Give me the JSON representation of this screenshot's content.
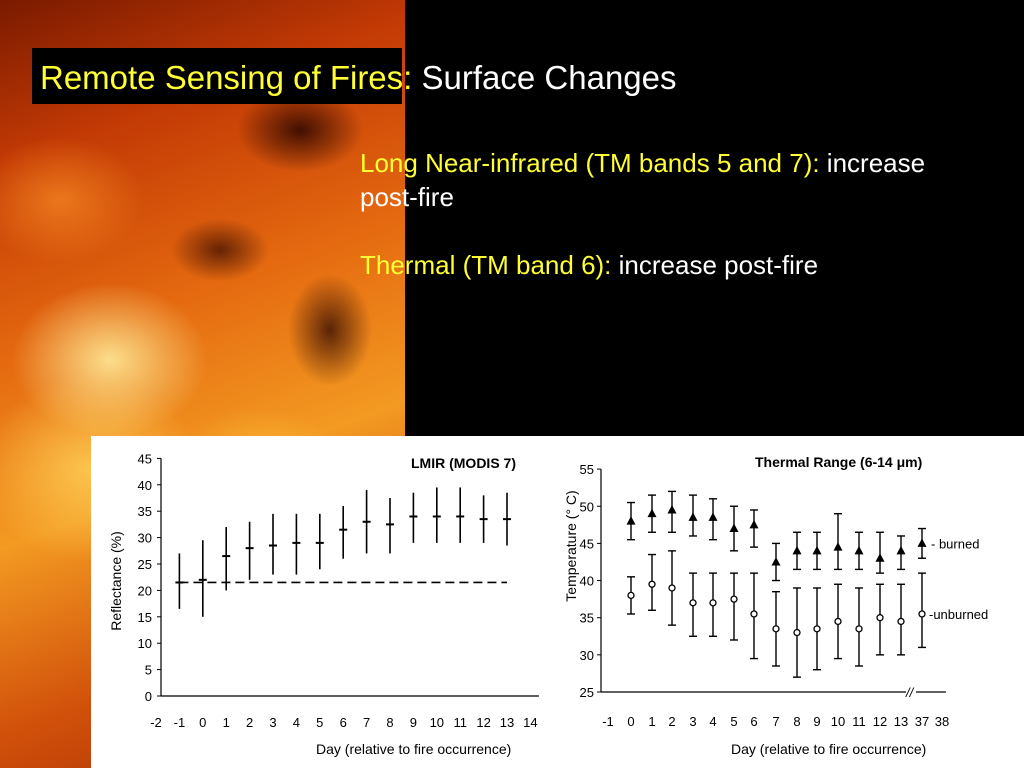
{
  "slide": {
    "title_highlight": "Remote Sensing of Fires:",
    "title_rest": " Surface Changes",
    "bullets": [
      {
        "highlight": "Long Near-infrared (TM bands 5 and 7):",
        "rest": " increase post-fire"
      },
      {
        "highlight": "Thermal (TM band 6):",
        "rest": " increase post-fire"
      }
    ]
  },
  "colors": {
    "highlight": "#ffff33",
    "text": "#ffffff",
    "background": "#000000"
  },
  "chart_data": [
    {
      "type": "scatter",
      "title": "LMIR (MODIS 7)",
      "xlabel": "Day (relative to fire occurrence)",
      "ylabel": "Reflectance (%)",
      "xlim": [
        -2,
        14
      ],
      "ylim": [
        0,
        45
      ],
      "x_ticks": [
        "-2",
        "-1",
        "0",
        "1",
        "2",
        "3",
        "4",
        "5",
        "6",
        "7",
        "8",
        "9",
        "10",
        "11",
        "12",
        "13",
        "14"
      ],
      "y_ticks": [
        "0",
        "5",
        "10",
        "15",
        "20",
        "25",
        "30",
        "35",
        "40",
        "45"
      ],
      "series": [
        {
          "x": [
            -1,
            0,
            1,
            2,
            3,
            4,
            5,
            6,
            7,
            8,
            9,
            10,
            11,
            12,
            13
          ],
          "mean": [
            21.5,
            22,
            26.5,
            28,
            28.5,
            29,
            29,
            31.5,
            33,
            32.5,
            34,
            34,
            34,
            33.5,
            33.5
          ],
          "low": [
            16.5,
            15,
            20,
            22,
            23,
            23,
            24,
            26,
            27,
            27,
            29,
            29,
            29,
            29,
            28.5
          ],
          "high": [
            27,
            29.5,
            32,
            33,
            34.5,
            34.5,
            34.5,
            36,
            39,
            37.5,
            38.5,
            39.5,
            39.5,
            38,
            38.5
          ]
        },
        {
          "x": [
            -1,
            13
          ],
          "mean": [
            21.5,
            21.5
          ],
          "style": "dashed"
        }
      ]
    },
    {
      "type": "scatter",
      "title": "Thermal Range (6-14 μm)",
      "xlabel": "Day (relative to fire occurrence)",
      "ylabel": "Temperature (° C)",
      "ylim": [
        25,
        55
      ],
      "x_ticks": [
        "-1",
        "0",
        "1",
        "2",
        "3",
        "4",
        "5",
        "6",
        "7",
        "8",
        "9",
        "10",
        "11",
        "12",
        "13",
        "37",
        "38"
      ],
      "y_ticks": [
        "25",
        "30",
        "35",
        "40",
        "45",
        "50",
        "55"
      ],
      "series": [
        {
          "name": "- burned",
          "x": [
            "0",
            "1",
            "2",
            "3",
            "4",
            "5",
            "6",
            "7",
            "8",
            "9",
            "10",
            "11",
            "12",
            "13",
            "37"
          ],
          "mean": [
            48,
            49,
            49.5,
            48.5,
            48.5,
            47,
            47.5,
            42.5,
            44,
            44,
            44.5,
            44,
            43,
            44,
            45
          ],
          "low": [
            45.5,
            46.5,
            46.5,
            46,
            45.5,
            44,
            44.5,
            40,
            41.5,
            41.5,
            41.5,
            41.5,
            41,
            41.5,
            43
          ],
          "high": [
            50.5,
            51.5,
            52,
            51.5,
            51,
            50,
            49.5,
            45,
            46.5,
            46.5,
            49,
            46.5,
            46.5,
            46,
            47
          ]
        },
        {
          "name": "-unburned",
          "x": [
            "0",
            "1",
            "2",
            "3",
            "4",
            "5",
            "6",
            "7",
            "8",
            "9",
            "10",
            "11",
            "12",
            "13",
            "37"
          ],
          "mean": [
            38,
            39.5,
            39,
            37,
            37,
            37.5,
            35.5,
            33.5,
            33,
            33.5,
            34.5,
            33.5,
            35,
            34.5,
            35.5
          ],
          "low": [
            35.5,
            36,
            34,
            32.5,
            32.5,
            32,
            29.5,
            28.5,
            27,
            28,
            29.5,
            28.5,
            30,
            30,
            31
          ],
          "high": [
            40.5,
            43.5,
            44,
            41,
            41,
            41,
            41,
            38.5,
            39,
            39,
            39.5,
            39,
            39.5,
            39.5,
            41
          ]
        }
      ]
    }
  ]
}
